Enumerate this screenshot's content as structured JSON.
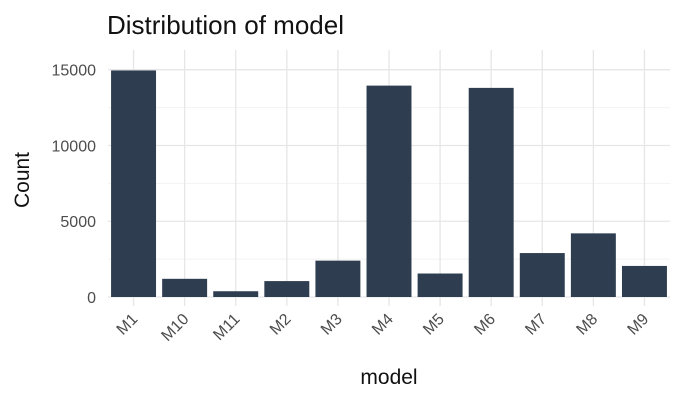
{
  "chart_data": {
    "type": "bar",
    "title": "Distribution of model",
    "xlabel": "model",
    "ylabel": "Count",
    "categories": [
      "M1",
      "M10",
      "M11",
      "M2",
      "M3",
      "M4",
      "M5",
      "M6",
      "M7",
      "M8",
      "M9"
    ],
    "values": [
      14950,
      1200,
      380,
      1050,
      2400,
      13950,
      1550,
      13800,
      2900,
      4200,
      2050
    ],
    "ylim": [
      0,
      16300
    ],
    "yticks": [
      0,
      5000,
      10000,
      15000
    ],
    "grid": true,
    "bar_color": "#2e3e50",
    "legend": "none"
  }
}
